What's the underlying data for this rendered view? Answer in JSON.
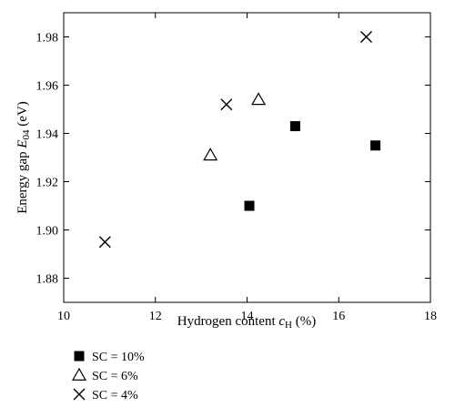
{
  "chart_data": {
    "type": "scatter",
    "x_axis": {
      "label_prefix": "Hydrogen content ",
      "label_var": "c",
      "label_sub": "H",
      "label_suffix": " (%)",
      "lim": [
        10,
        18
      ],
      "ticks": [
        10,
        12,
        14,
        16,
        18
      ],
      "tick_labels": [
        "10",
        "12",
        "14",
        "16",
        "18"
      ]
    },
    "y_axis": {
      "label_prefix": "Energy gap ",
      "label_var": "E",
      "label_sub": "04",
      "label_suffix": " (eV)",
      "lim": [
        1.87,
        1.99
      ],
      "ticks": [
        1.88,
        1.9,
        1.92,
        1.94,
        1.96,
        1.98
      ],
      "tick_labels": [
        "1.88",
        "1.90",
        "1.92",
        "1.94",
        "1.96",
        "1.98"
      ]
    },
    "grid": false,
    "legend_position": "bottom-left, below plot",
    "series": [
      {
        "name": "SC = 10%",
        "marker": "filled-square",
        "points": [
          {
            "x": 14.05,
            "y": 1.91
          },
          {
            "x": 15.05,
            "y": 1.943
          },
          {
            "x": 16.8,
            "y": 1.935
          }
        ]
      },
      {
        "name": "SC = 6%",
        "marker": "open-triangle",
        "points": [
          {
            "x": 13.2,
            "y": 1.931
          },
          {
            "x": 14.25,
            "y": 1.954
          }
        ]
      },
      {
        "name": "SC = 4%",
        "marker": "cross",
        "points": [
          {
            "x": 10.9,
            "y": 1.895
          },
          {
            "x": 13.55,
            "y": 1.952
          },
          {
            "x": 16.6,
            "y": 1.98
          }
        ]
      }
    ]
  }
}
